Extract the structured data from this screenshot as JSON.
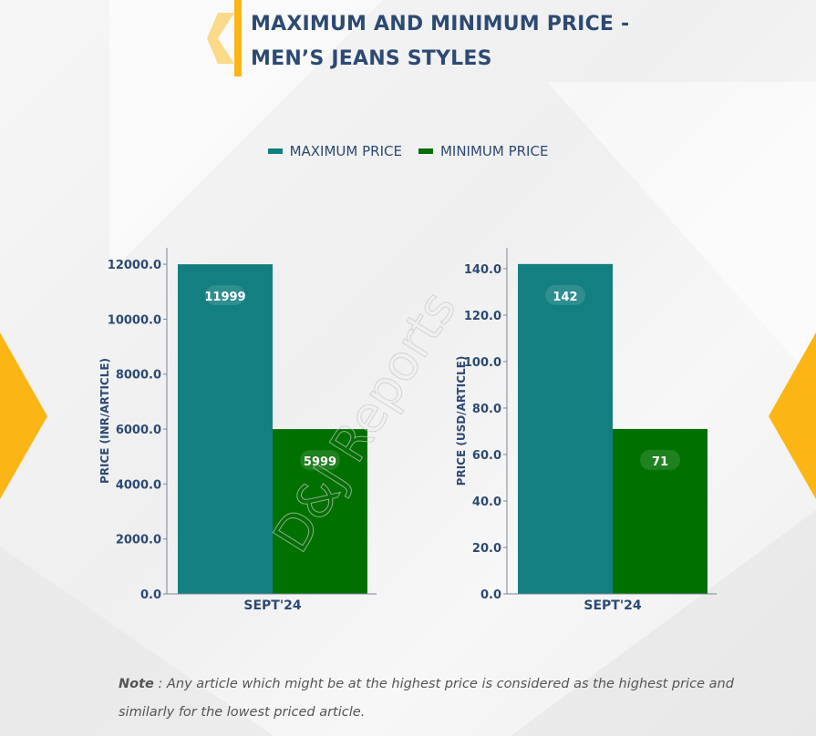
{
  "title": {
    "line1": "MAXIMUM AND MINIMUM PRICE -",
    "line2": "MEN’S JEANS STYLES"
  },
  "legend": [
    {
      "label": "MAXIMUM PRICE",
      "color": "#137f80"
    },
    {
      "label": "MINIMUM PRICE",
      "color": "#007000"
    }
  ],
  "watermark": "D&J Reports",
  "colors": {
    "accent": "#fbb615",
    "axis_text": "#2d4a73"
  },
  "chart_data": [
    {
      "type": "bar",
      "categories": [
        "SEPT'24"
      ],
      "series": [
        {
          "name": "MAXIMUM PRICE",
          "values": [
            11999
          ]
        },
        {
          "name": "MINIMUM PRICE",
          "values": [
            5999
          ]
        }
      ],
      "ylabel": "PRICE (INR/ARTICLE)",
      "ylim": [
        0,
        12600
      ],
      "yticks": [
        0,
        2000,
        4000,
        6000,
        8000,
        10000,
        12000
      ],
      "ytick_labels": [
        "0.0",
        "2000.0",
        "4000.0",
        "6000.0",
        "8000.0",
        "10000.0",
        "12000.0"
      ],
      "data_labels": [
        "11999",
        "5999"
      ],
      "grid": false
    },
    {
      "type": "bar",
      "categories": [
        "SEPT'24"
      ],
      "series": [
        {
          "name": "MAXIMUM PRICE",
          "values": [
            142
          ]
        },
        {
          "name": "MINIMUM PRICE",
          "values": [
            71
          ]
        }
      ],
      "ylabel": "PRICE (USD/ARTICLE)",
      "ylim": [
        0,
        149
      ],
      "yticks": [
        0,
        20,
        40,
        60,
        80,
        100,
        120,
        140
      ],
      "ytick_labels": [
        "0.0",
        "20.0",
        "40.0",
        "60.0",
        "80.0",
        "100.0",
        "120.0",
        "140.0"
      ],
      "data_labels": [
        "142",
        "71"
      ],
      "grid": false
    }
  ],
  "note": {
    "label": "Note",
    "text": " : Any article which might be at the highest price is considered as the highest price and similarly for the lowest priced article."
  }
}
